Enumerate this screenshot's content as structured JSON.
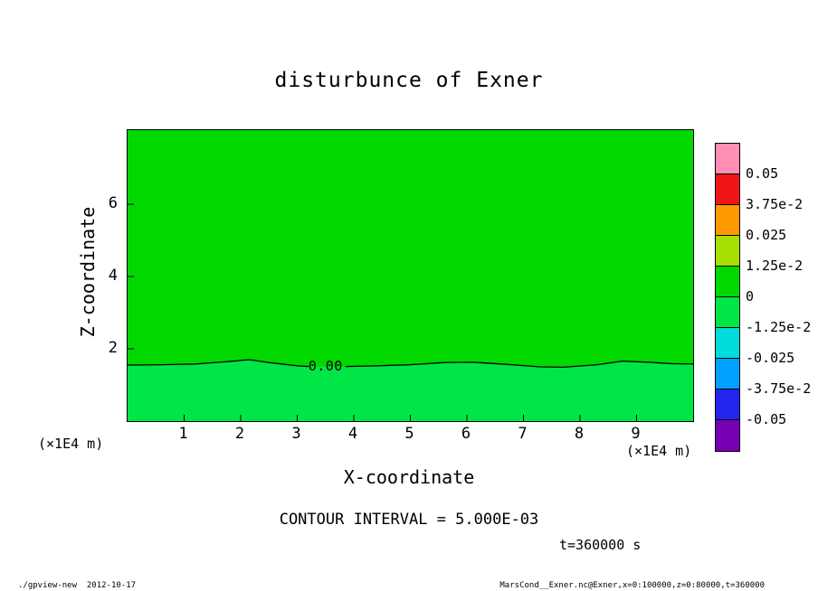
{
  "title": "disturbunce of Exner",
  "axes": {
    "x_label": "X-coordinate",
    "y_label": "Z-coordinate",
    "x_unit_left": "(×1E4 m)",
    "x_unit_right": "(×1E4 m)"
  },
  "annotations": {
    "contour_interval": "CONTOUR INTERVAL = 5.000E-03",
    "time": "t=360000 s"
  },
  "footer": {
    "left": "./gpview-new  2012-10-17",
    "right": "MarsCond__Exner.nc@Exner,x=0:100000,z=0:80000,t=360000"
  },
  "colorbar": {
    "labels": [
      "0.05",
      "3.75e-2",
      "0.025",
      "1.25e-2",
      "0",
      "-1.25e-2",
      "-0.025",
      "-3.75e-2",
      "-0.05"
    ],
    "colors": [
      "#ff8fb4",
      "#f01414",
      "#ff9900",
      "#a6e000",
      "#00d800",
      "#00e646",
      "#00dcdc",
      "#00a0ff",
      "#2424f0",
      "#7800b4"
    ]
  },
  "chart_data": {
    "type": "heatmap",
    "title": "disturbunce of Exner",
    "xlabel": "X-coordinate (×1E4 m)",
    "ylabel": "Z-coordinate (×1E4 m)",
    "xlim": [
      0,
      10
    ],
    "ylim": [
      0,
      8.05
    ],
    "x_ticks": [
      1,
      2,
      3,
      4,
      5,
      6,
      7,
      8,
      9
    ],
    "y_ticks": [
      2,
      4,
      6
    ],
    "grid": false,
    "legend_position": "colorbar-right",
    "contour_interval": 0.005,
    "levels": [
      0.05,
      0.0375,
      0.025,
      0.0125,
      0,
      -0.0125,
      -0.025,
      -0.0375,
      -0.05
    ],
    "region_colors": {
      "above_zero": "#00d800",
      "below_zero": "#00e646"
    },
    "zero_contour": {
      "label": "0.00",
      "label_x": 3.5,
      "label_z": 1.52,
      "segments": [
        [
          [
            0,
            1.55
          ],
          [
            0.6,
            1.56
          ],
          [
            1.2,
            1.58
          ],
          [
            1.8,
            1.65
          ],
          [
            2.15,
            1.7
          ],
          [
            2.5,
            1.62
          ],
          [
            3.0,
            1.53
          ],
          [
            3.2,
            1.51
          ]
        ],
        [
          [
            3.85,
            1.51
          ],
          [
            4.4,
            1.53
          ],
          [
            5.0,
            1.56
          ],
          [
            5.6,
            1.62
          ],
          [
            6.1,
            1.63
          ],
          [
            6.7,
            1.57
          ],
          [
            7.3,
            1.5
          ],
          [
            7.7,
            1.49
          ],
          [
            8.3,
            1.56
          ],
          [
            8.75,
            1.66
          ],
          [
            9.2,
            1.63
          ],
          [
            9.6,
            1.59
          ],
          [
            10,
            1.58
          ]
        ]
      ]
    }
  }
}
